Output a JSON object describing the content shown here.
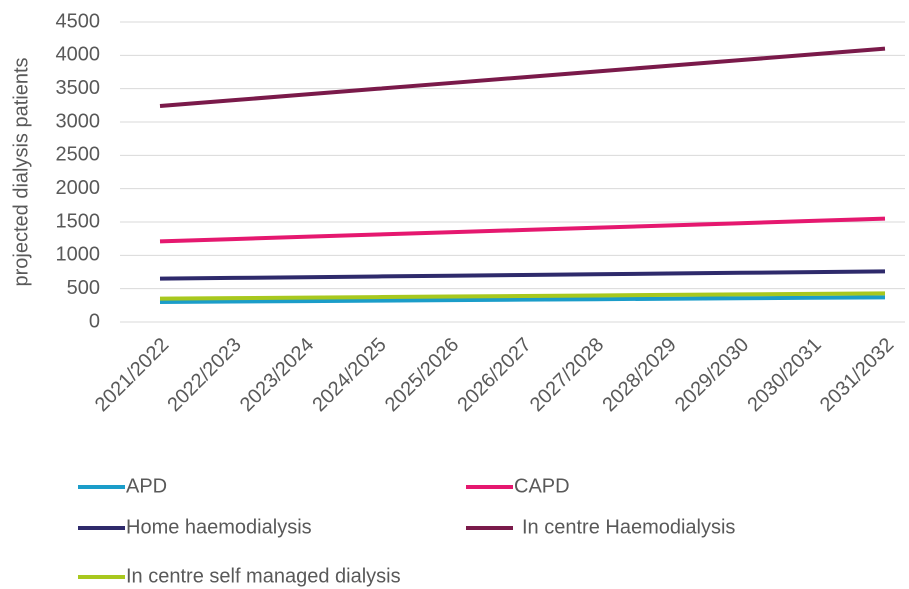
{
  "chart_data": {
    "type": "line",
    "y_label": "projected dialysis patients",
    "categories": [
      "2021/2022",
      "2022/2023",
      "2023/2024",
      "2024/2025",
      "2025/2026",
      "2026/2027",
      "2027/2028",
      "2028/2029",
      "2029/2030",
      "2030/2031",
      "2031/2032"
    ],
    "series": [
      {
        "name": "APD",
        "color": "#1b9dc9",
        "values": [
          300,
          307,
          314,
          321,
          328,
          335,
          342,
          349,
          356,
          363,
          370
        ]
      },
      {
        "name": "CAPD",
        "color": "#e5186f",
        "values": [
          1210,
          1244,
          1278,
          1312,
          1346,
          1380,
          1414,
          1448,
          1482,
          1516,
          1550
        ]
      },
      {
        "name": "Home haemodialysis",
        "color": "#2e2a6b",
        "values": [
          650,
          661,
          672,
          683,
          694,
          705,
          716,
          727,
          738,
          749,
          760
        ]
      },
      {
        "name": "In centre Haemodialysis",
        "color": "#7a1a4a",
        "values": [
          3240,
          3326,
          3412,
          3498,
          3584,
          3670,
          3756,
          3842,
          3928,
          4014,
          4100
        ]
      },
      {
        "name": "In centre self managed dialysis",
        "color": "#a8c81e",
        "values": [
          350,
          358,
          366,
          374,
          382,
          390,
          398,
          406,
          414,
          422,
          430
        ]
      }
    ],
    "ylim": [
      0,
      4500
    ],
    "yticks": [
      0,
      500,
      1000,
      1500,
      2000,
      2500,
      3000,
      3500,
      4000,
      4500
    ],
    "grid": true
  }
}
